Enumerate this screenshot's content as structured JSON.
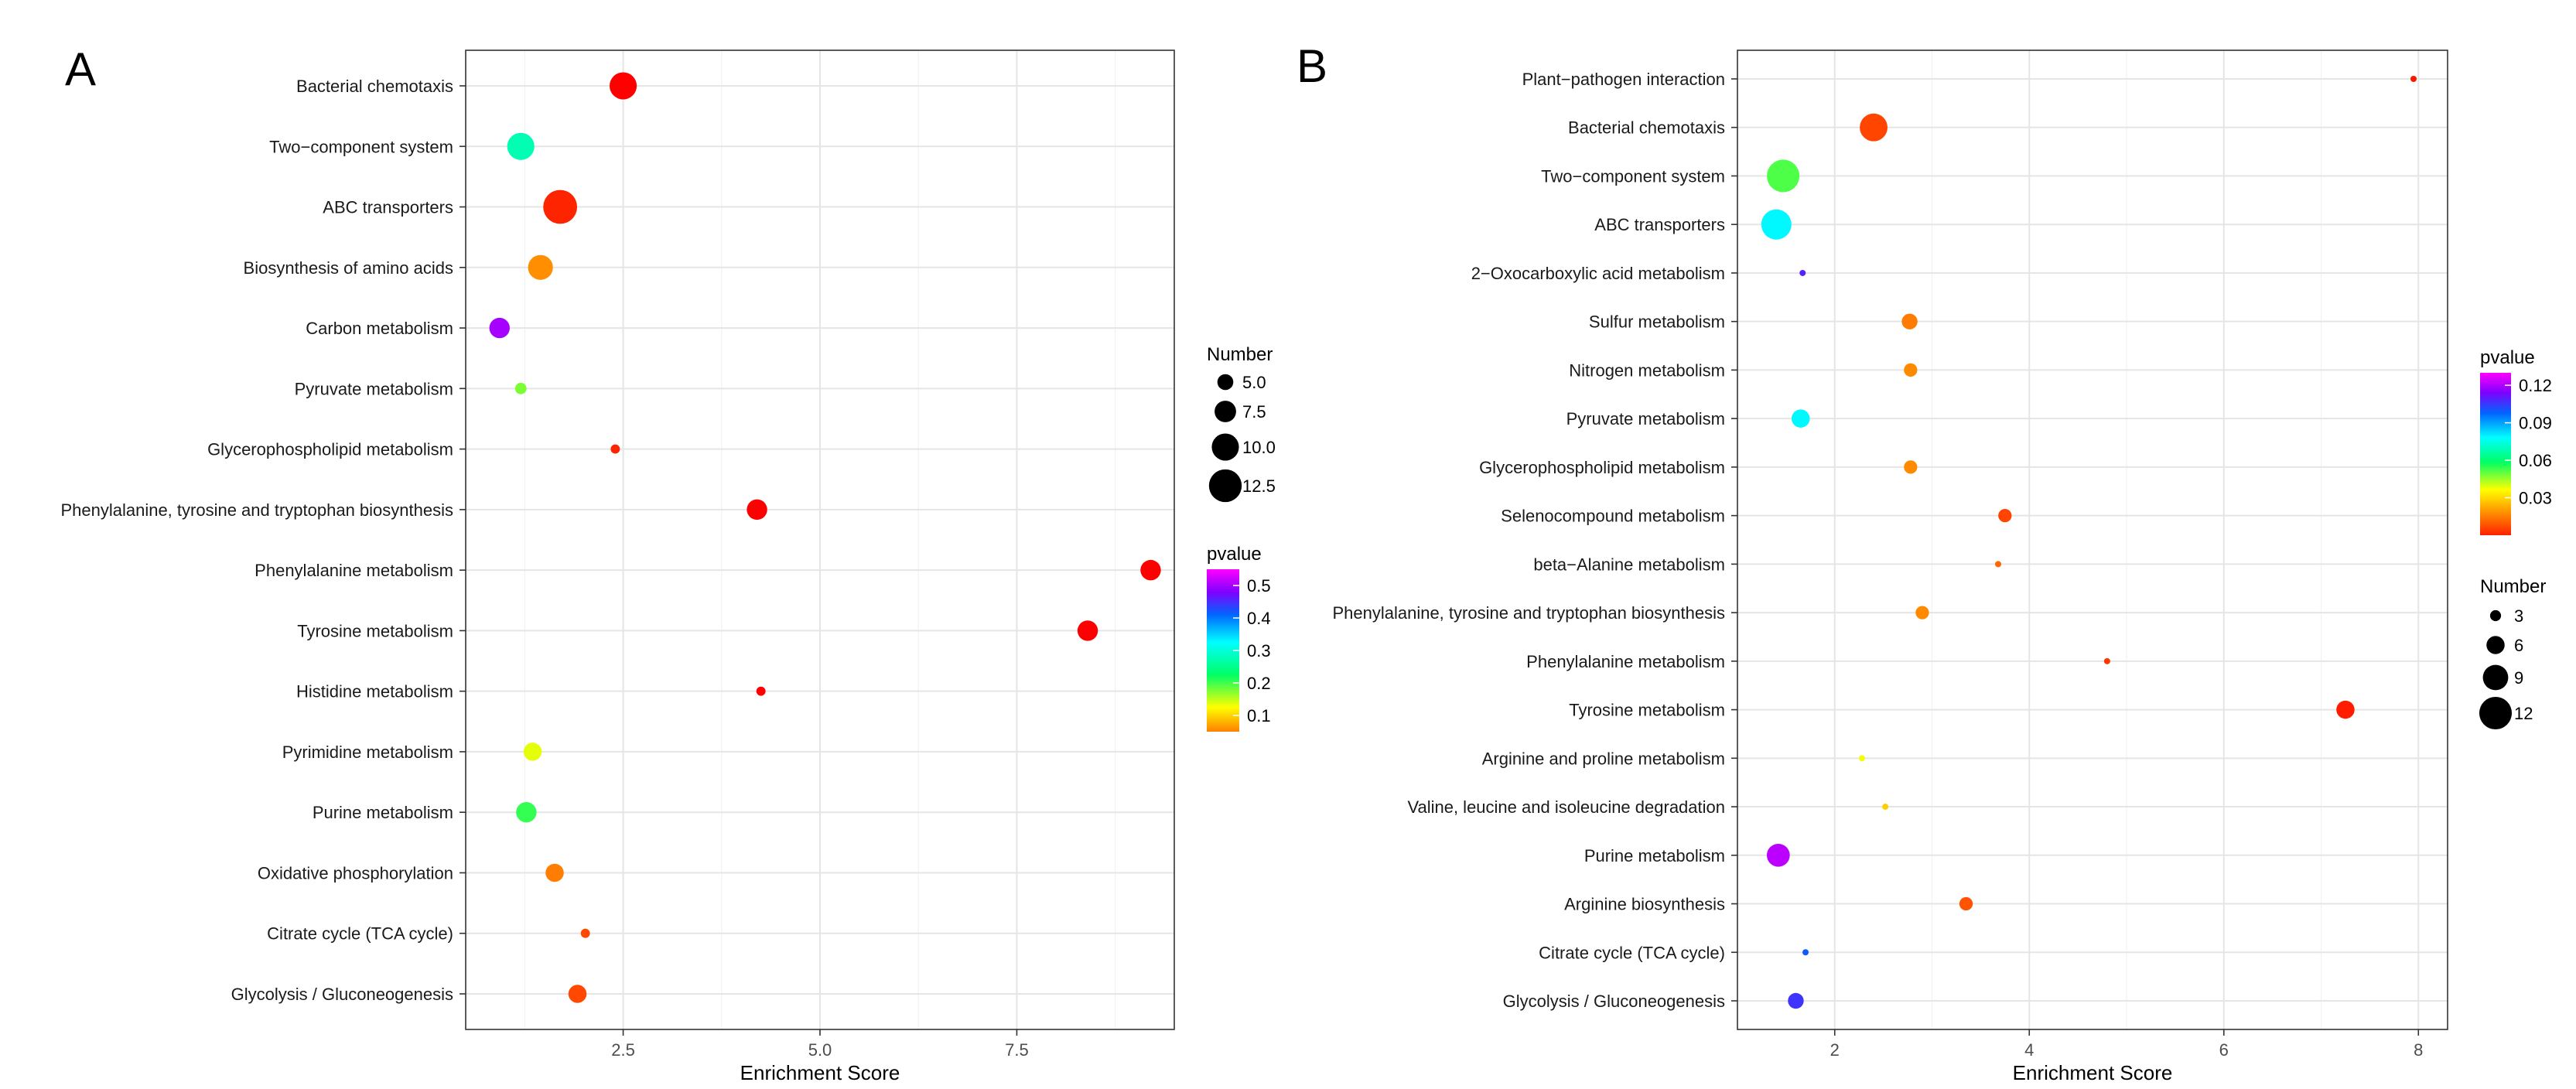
{
  "chart_data": [
    {
      "panel": "A",
      "type": "scatter",
      "xlabel": "Enrichment Score",
      "xlim": [
        0.5,
        9.5
      ],
      "xticks": [
        2.5,
        5.0,
        7.5
      ],
      "xtick_labels": [
        "2.5",
        "5.0",
        "7.5"
      ],
      "categories": [
        "Bacterial chemotaxis",
        "Two−component system",
        "ABC transporters",
        "Biosynthesis of amino acids",
        "Carbon metabolism",
        "Pyruvate metabolism",
        "Glycerophospholipid metabolism",
        "Phenylalanine, tyrosine and tryptophan biosynthesis",
        "Phenylalanine metabolism",
        "Tyrosine metabolism",
        "Histidine metabolism",
        "Pyrimidine metabolism",
        "Purine metabolism",
        "Oxidative phosphorylation",
        "Citrate cycle (TCA cycle)",
        "Glycolysis / Gluconeogenesis"
      ],
      "points": [
        {
          "x": 2.5,
          "number": 10,
          "pvalue": 0.01
        },
        {
          "x": 1.2,
          "number": 10,
          "pvalue": 0.3
        },
        {
          "x": 1.7,
          "number": 13,
          "pvalue": 0.07
        },
        {
          "x": 1.45,
          "number": 9,
          "pvalue": 0.13
        },
        {
          "x": 0.93,
          "number": 7,
          "pvalue": 0.5
        },
        {
          "x": 1.2,
          "number": 3,
          "pvalue": 0.23
        },
        {
          "x": 2.4,
          "number": 2,
          "pvalue": 0.07
        },
        {
          "x": 4.2,
          "number": 7,
          "pvalue": 0.01
        },
        {
          "x": 9.2,
          "number": 7,
          "pvalue": 0.01
        },
        {
          "x": 8.4,
          "number": 7,
          "pvalue": 0.01
        },
        {
          "x": 4.25,
          "number": 2,
          "pvalue": 0.01
        },
        {
          "x": 1.35,
          "number": 6,
          "pvalue": 0.2
        },
        {
          "x": 1.27,
          "number": 7,
          "pvalue": 0.25
        },
        {
          "x": 1.63,
          "number": 6,
          "pvalue": 0.12
        },
        {
          "x": 2.02,
          "number": 2,
          "pvalue": 0.09
        },
        {
          "x": 1.92,
          "number": 6,
          "pvalue": 0.09
        }
      ],
      "legends": {
        "size": {
          "title": "Number",
          "values": [
            5.0,
            7.5,
            10.0,
            12.5
          ],
          "labels": [
            "5.0",
            "7.5",
            "10.0",
            "12.5"
          ]
        },
        "color": {
          "title": "pvalue",
          "ticks": [
            0.5,
            0.4,
            0.3,
            0.2,
            0.1
          ],
          "labels": [
            "0.5",
            "0.4",
            "0.3",
            "0.2",
            "0.1"
          ],
          "range": [
            0.05,
            0.55
          ]
        }
      },
      "colors": [
        "#ff0000",
        "#ff8000",
        "#ffff00",
        "#00ff66",
        "#00ffff",
        "#0066ff",
        "#8000ff",
        "#ff00ff"
      ]
    },
    {
      "panel": "B",
      "type": "scatter",
      "xlabel": "Enrichment Score",
      "xlim": [
        1.0,
        8.3
      ],
      "xticks": [
        2,
        4,
        6,
        8
      ],
      "xtick_labels": [
        "2",
        "4",
        "6",
        "8"
      ],
      "categories": [
        "Plant−pathogen interaction",
        "Bacterial chemotaxis",
        "Two−component system",
        "ABC transporters",
        "2−Oxocarboxylic acid metabolism",
        "Sulfur metabolism",
        "Nitrogen metabolism",
        "Pyruvate metabolism",
        "Glycerophospholipid metabolism",
        "Selenocompound metabolism",
        "beta−Alanine metabolism",
        "Phenylalanine, tyrosine and tryptophan biosynthesis",
        "Phenylalanine metabolism",
        "Tyrosine metabolism",
        "Arginine and proline metabolism",
        "Valine, leucine and isoleucine degradation",
        "Purine metabolism",
        "Arginine biosynthesis",
        "Citrate cycle (TCA cycle)",
        "Glycolysis / Gluconeogenesis"
      ],
      "points": [
        {
          "x": 7.95,
          "number": 1,
          "pvalue": 0.003
        },
        {
          "x": 2.4,
          "number": 10,
          "pvalue": 0.01
        },
        {
          "x": 1.47,
          "number": 12,
          "pvalue": 0.05
        },
        {
          "x": 1.4,
          "number": 11,
          "pvalue": 0.075
        },
        {
          "x": 1.67,
          "number": 1,
          "pvalue": 0.105
        },
        {
          "x": 2.77,
          "number": 5,
          "pvalue": 0.018
        },
        {
          "x": 2.78,
          "number": 4,
          "pvalue": 0.02
        },
        {
          "x": 1.65,
          "number": 6,
          "pvalue": 0.075
        },
        {
          "x": 2.78,
          "number": 4,
          "pvalue": 0.02
        },
        {
          "x": 3.75,
          "number": 4,
          "pvalue": 0.01
        },
        {
          "x": 3.68,
          "number": 1,
          "pvalue": 0.015
        },
        {
          "x": 2.9,
          "number": 4,
          "pvalue": 0.02
        },
        {
          "x": 4.8,
          "number": 1,
          "pvalue": 0.008
        },
        {
          "x": 7.25,
          "number": 6,
          "pvalue": 0.004
        },
        {
          "x": 2.28,
          "number": 1,
          "pvalue": 0.038
        },
        {
          "x": 2.52,
          "number": 1,
          "pvalue": 0.03
        },
        {
          "x": 1.42,
          "number": 8,
          "pvalue": 0.12
        },
        {
          "x": 3.35,
          "number": 4,
          "pvalue": 0.012
        },
        {
          "x": 1.7,
          "number": 1,
          "pvalue": 0.095
        },
        {
          "x": 1.6,
          "number": 5,
          "pvalue": 0.102
        }
      ],
      "legends": {
        "color": {
          "title": "pvalue",
          "ticks": [
            0.12,
            0.09,
            0.06,
            0.03
          ],
          "labels": [
            "0.12",
            "0.09",
            "0.06",
            "0.03"
          ],
          "range": [
            0.0,
            0.13
          ]
        },
        "size": {
          "title": "Number",
          "values": [
            3,
            6,
            9,
            12
          ],
          "labels": [
            "3",
            "6",
            "9",
            "12"
          ]
        }
      },
      "colors": [
        "#ff0000",
        "#ff8000",
        "#ffff00",
        "#00ff66",
        "#00ffff",
        "#0066ff",
        "#8000ff",
        "#ff00ff"
      ]
    }
  ]
}
